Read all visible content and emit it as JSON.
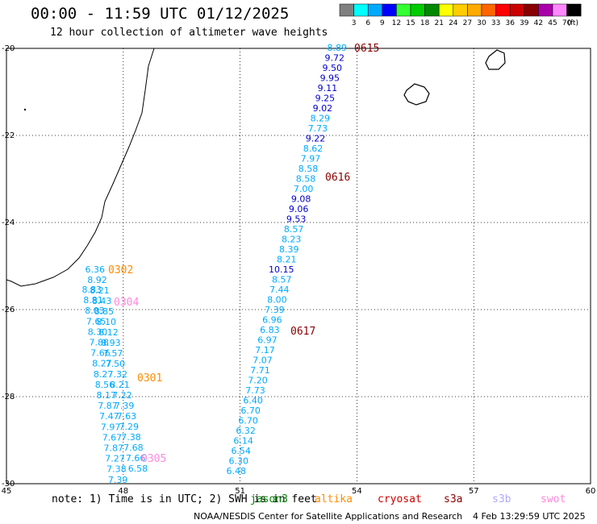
{
  "header": {
    "title": "00:00 - 11:59 UTC 01/12/2025",
    "subtitle": "12 hour collection of altimeter wave heights"
  },
  "color_scale": {
    "labels": [
      "3",
      "6",
      "9",
      "12",
      "15",
      "18",
      "21",
      "24",
      "27",
      "30",
      "33",
      "36",
      "39",
      "42",
      "45",
      "70"
    ],
    "unit": "(ft)",
    "colors": [
      "#808080",
      "#00ffff",
      "#00aaff",
      "#0000ff",
      "#33ff33",
      "#00cc00",
      "#008800",
      "#ffff00",
      "#ffcc00",
      "#ffaa00",
      "#ff6600",
      "#ff0000",
      "#cc0000",
      "#880000",
      "#aa00aa",
      "#ff88ff",
      "#000000"
    ]
  },
  "axes": {
    "lat_labels": [
      "-20",
      "-22",
      "-24",
      "-26",
      "-28",
      "-30"
    ],
    "lon_labels": [
      "45",
      "48",
      "51",
      "54",
      "57",
      "60"
    ]
  },
  "passes": [
    {
      "label": "0615",
      "color": "#8b0000"
    },
    {
      "label": "0616",
      "color": "#8b0000"
    },
    {
      "label": "0617",
      "color": "#8b0000"
    },
    {
      "label": "0302",
      "color": "#ff8c00"
    },
    {
      "label": "0301",
      "color": "#ff8c00"
    },
    {
      "label": "0304",
      "color": "#ff88dd"
    },
    {
      "label": "0305",
      "color": "#ff88dd"
    }
  ],
  "track_east": [
    {
      "v": "8.89",
      "c": "#00aaff"
    },
    {
      "v": "9.72",
      "c": "#0000cc"
    },
    {
      "v": "9.50",
      "c": "#0000cc"
    },
    {
      "v": "9.95",
      "c": "#0000cc"
    },
    {
      "v": "9.11",
      "c": "#0000cc"
    },
    {
      "v": "9.25",
      "c": "#0000cc"
    },
    {
      "v": "9.02",
      "c": "#0000cc"
    },
    {
      "v": "8.29",
      "c": "#00aaff"
    },
    {
      "v": "7.73",
      "c": "#00aaff"
    },
    {
      "v": "9.22",
      "c": "#0000cc"
    },
    {
      "v": "8.62",
      "c": "#00aaff"
    },
    {
      "v": "7.97",
      "c": "#00aaff"
    },
    {
      "v": "8.58",
      "c": "#00aaff"
    },
    {
      "v": "8.58",
      "c": "#00aaff"
    },
    {
      "v": "7.00",
      "c": "#00aaff"
    },
    {
      "v": "9.08",
      "c": "#0000cc"
    },
    {
      "v": "9.06",
      "c": "#0000cc"
    },
    {
      "v": "9.53",
      "c": "#0000cc"
    },
    {
      "v": "8.57",
      "c": "#00aaff"
    },
    {
      "v": "8.23",
      "c": "#00aaff"
    },
    {
      "v": "8.39",
      "c": "#00aaff"
    },
    {
      "v": "8.21",
      "c": "#00aaff"
    },
    {
      "v": "10.15",
      "c": "#0000cc"
    },
    {
      "v": "8.57",
      "c": "#00aaff"
    },
    {
      "v": "7.44",
      "c": "#00aaff"
    },
    {
      "v": "8.00",
      "c": "#00aaff"
    },
    {
      "v": "7.39",
      "c": "#00aaff"
    },
    {
      "v": "6.96",
      "c": "#00aaff"
    },
    {
      "v": "6.83",
      "c": "#00aaff"
    },
    {
      "v": "6.97",
      "c": "#00aaff"
    },
    {
      "v": "7.17",
      "c": "#00aaff"
    },
    {
      "v": "7.07",
      "c": "#00aaff"
    },
    {
      "v": "7.71",
      "c": "#00aaff"
    },
    {
      "v": "7.20",
      "c": "#00aaff"
    },
    {
      "v": "7.73",
      "c": "#00aaff"
    },
    {
      "v": "6.40",
      "c": "#00aaff"
    },
    {
      "v": "6.70",
      "c": "#00aaff"
    },
    {
      "v": "6.70",
      "c": "#00aaff"
    },
    {
      "v": "6.32",
      "c": "#00aaff"
    },
    {
      "v": "6.14",
      "c": "#00aaff"
    },
    {
      "v": "6.54",
      "c": "#00aaff"
    },
    {
      "v": "6.30",
      "c": "#00aaff"
    },
    {
      "v": "6.48",
      "c": "#00aaff"
    }
  ],
  "track_west_a": [
    "8.83",
    "8.81",
    "8.03",
    "7.65",
    "8.30",
    "7.88",
    "7.66",
    "8.27",
    "8.27",
    "8.56",
    "8.17",
    "7.87",
    "7.47",
    "7.97",
    "7.67",
    "7.87",
    "7.27",
    "7.38",
    "7.39"
  ],
  "track_west_b": [
    "6.36",
    "8.92",
    "8.21",
    "8.43",
    "8.85",
    "8.10",
    "8.12",
    "8.93",
    "7.57",
    "7.50",
    "7.32",
    "8.21",
    "7.22",
    "7.39",
    "7.63",
    "7.29",
    "7.38",
    "7.68",
    "7.66",
    "6.58"
  ],
  "footer": {
    "note": "note: 1) Time is in UTC; 2) SWH is in feet",
    "satellites": [
      {
        "name": "jason3",
        "color": "#008800"
      },
      {
        "name": "altika",
        "color": "#ff8c00"
      },
      {
        "name": "cryosat",
        "color": "#cc0000"
      },
      {
        "name": "s3a",
        "color": "#8b0000"
      },
      {
        "name": "s3b",
        "color": "#aaaaff"
      },
      {
        "name": "swot",
        "color": "#ff88dd"
      }
    ],
    "credit": "NOAA/NESDIS Center for Satellite Applications and Research",
    "timestamp": "4 Feb 13:29:59 UTC 2025"
  }
}
